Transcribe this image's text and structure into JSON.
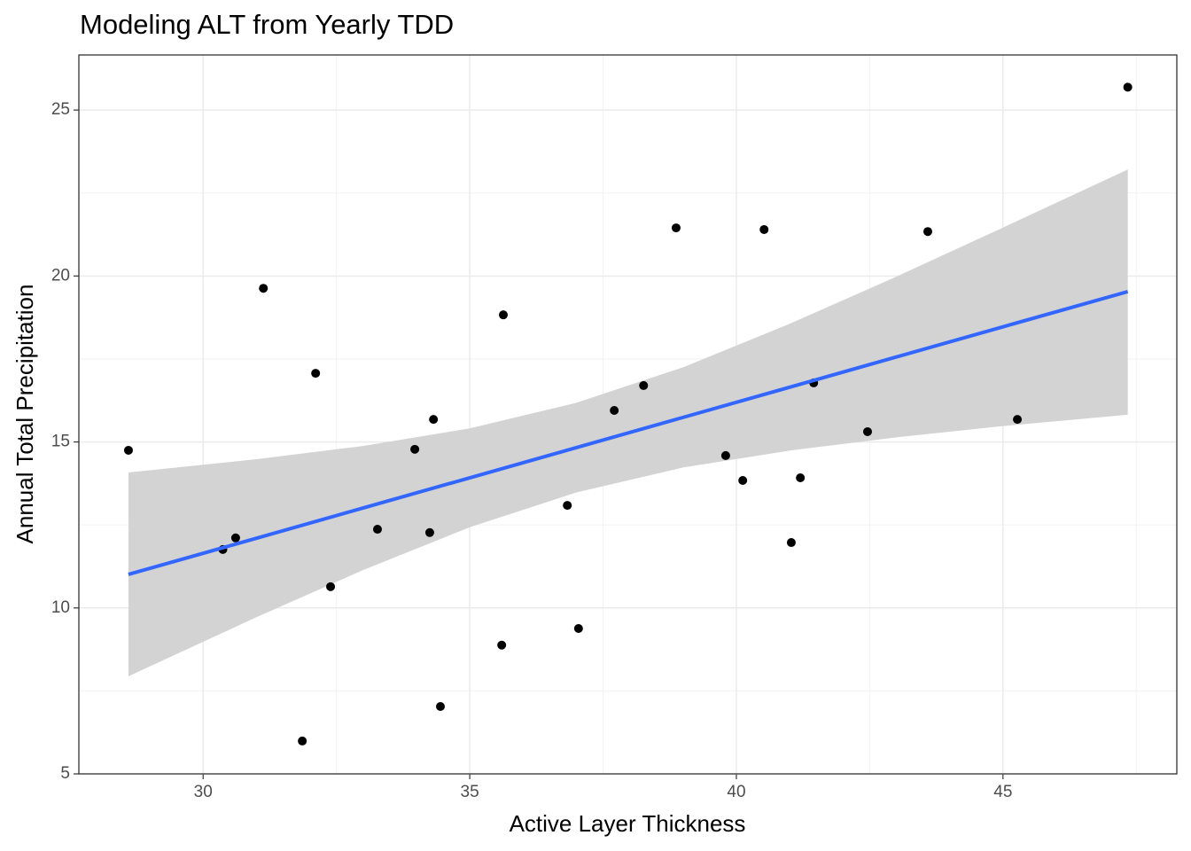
{
  "chart_data": {
    "type": "scatter",
    "title": "Modeling ALT from Yearly TDD",
    "x_label": "Active Layer Thickness",
    "y_label": "Annual Total Precipitation",
    "x": [
      28.6,
      30.37,
      30.61,
      31.13,
      31.86,
      32.11,
      32.39,
      33.27,
      33.97,
      34.25,
      34.32,
      34.45,
      35.6,
      35.63,
      36.83,
      37.04,
      37.71,
      38.26,
      38.87,
      39.8,
      40.12,
      40.52,
      41.03,
      41.2,
      41.45,
      42.46,
      43.59,
      45.27,
      47.34
    ],
    "values": [
      14.75,
      11.76,
      12.11,
      19.63,
      5.99,
      17.07,
      10.64,
      12.37,
      14.78,
      12.27,
      15.68,
      7.03,
      8.88,
      18.83,
      13.09,
      9.38,
      15.95,
      16.7,
      21.45,
      14.59,
      13.84,
      21.4,
      11.97,
      13.92,
      16.78,
      15.31,
      21.34,
      15.68,
      25.69
    ],
    "color": "#000000",
    "fit": {
      "color": "#3366FF",
      "band_color": "#d3d3d3",
      "x": [
        28.6,
        31,
        33,
        35,
        37,
        39,
        41,
        43,
        45,
        47.34
      ],
      "values": [
        11.01,
        12.1,
        13.01,
        13.92,
        14.83,
        15.74,
        16.65,
        17.56,
        18.47,
        19.53
      ],
      "lower": [
        7.94,
        9.72,
        11.14,
        12.43,
        13.48,
        14.23,
        14.74,
        15.14,
        15.48,
        15.82
      ],
      "upper": [
        14.08,
        14.48,
        14.88,
        15.41,
        16.18,
        17.25,
        18.56,
        19.98,
        21.46,
        23.21
      ]
    },
    "xlim": [
      27.67,
      48.26
    ],
    "ylim": [
      5,
      26.66
    ],
    "xticks": [
      30,
      35,
      40,
      45
    ],
    "yticks": [
      5,
      10,
      15,
      20,
      25
    ],
    "xminor": [
      32.5,
      37.5,
      42.5,
      47.5
    ],
    "yminor": [
      7.5,
      12.5,
      17.5,
      22.5
    ],
    "grid": true
  }
}
